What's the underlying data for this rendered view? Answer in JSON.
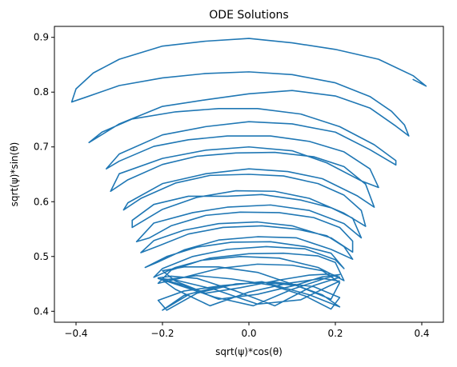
{
  "chart_data": {
    "type": "line",
    "title": "ODE Solutions",
    "xlabel": "sqrt(ψ)*cos(θ)",
    "ylabel": "sqrt(ψ)*sin(θ)",
    "xlim": [
      -0.45,
      0.45
    ],
    "ylim": [
      0.38,
      0.92
    ],
    "xticks": [
      -0.4,
      -0.2,
      0.0,
      0.2,
      0.4
    ],
    "xtick_labels": [
      "−0.4",
      "−0.2",
      "0.0",
      "0.2",
      "0.4"
    ],
    "yticks": [
      0.4,
      0.5,
      0.6,
      0.7,
      0.8,
      0.9
    ],
    "ytick_labels": [
      "0.4",
      "0.5",
      "0.6",
      "0.7",
      "0.8",
      "0.9"
    ],
    "grid": false,
    "line_color": "#1f77b4",
    "series": [
      {
        "x": [
          0.38,
          0.41,
          0.38,
          0.3,
          0.2,
          0.1,
          0.0,
          -0.1,
          -0.2,
          -0.3,
          -0.36,
          -0.4,
          -0.41,
          -0.38,
          -0.3,
          -0.2,
          -0.1,
          0.0,
          0.1,
          0.2,
          0.28,
          0.33,
          0.36,
          0.37,
          0.34,
          0.28,
          0.2,
          0.1,
          0.0,
          -0.1,
          -0.2,
          -0.3,
          -0.37,
          -0.34,
          -0.27,
          -0.17,
          -0.07,
          0.02,
          0.12,
          0.21,
          0.29,
          0.34,
          0.34,
          0.28,
          0.2,
          0.1,
          0.0,
          -0.1,
          -0.2,
          -0.3,
          -0.33,
          -0.3,
          -0.22,
          -0.14,
          -0.05,
          0.05,
          0.14,
          0.22,
          0.28,
          0.3,
          0.26,
          0.18,
          0.1,
          0.0,
          -0.1,
          -0.2,
          -0.3,
          -0.32,
          -0.28,
          -0.2,
          -0.12,
          -0.03,
          0.06,
          0.15,
          0.22,
          0.27,
          0.29,
          0.25,
          0.17,
          0.09,
          0.0,
          -0.1,
          -0.2,
          -0.28,
          -0.29,
          -0.25,
          -0.17,
          -0.09,
          0.0,
          0.08,
          0.16,
          0.22,
          0.26,
          0.27,
          0.22,
          0.14,
          0.06,
          -0.03,
          -0.12,
          -0.2,
          -0.27,
          -0.27,
          -0.22,
          -0.14,
          -0.05,
          0.03,
          0.12,
          0.19,
          0.24,
          0.26,
          0.22,
          0.14,
          0.05,
          -0.05,
          -0.13,
          -0.22,
          -0.26,
          -0.23,
          -0.18,
          -0.1,
          -0.02,
          0.07,
          0.15,
          0.21,
          0.24,
          0.24,
          0.19,
          0.1,
          0.02,
          -0.07,
          -0.15,
          -0.22,
          -0.25,
          -0.21,
          -0.14,
          -0.06,
          0.03,
          0.11,
          0.18,
          0.22,
          0.24,
          0.19,
          0.11,
          0.02,
          -0.07,
          -0.15,
          -0.21,
          -0.24,
          -0.19,
          -0.12,
          -0.04,
          0.05,
          0.13,
          0.19,
          0.22,
          0.2,
          0.13,
          0.04,
          -0.05,
          -0.13,
          -0.2,
          -0.22,
          -0.17,
          -0.09,
          0.0,
          0.08,
          0.16,
          0.2,
          0.22,
          0.16,
          0.07,
          -0.02,
          -0.11,
          -0.18,
          -0.21,
          -0.15,
          -0.07,
          0.02,
          0.1,
          0.17,
          0.21,
          0.19,
          0.11,
          0.02,
          -0.07,
          -0.15,
          -0.2,
          -0.17,
          -0.1,
          -0.02,
          0.07,
          0.14,
          0.19,
          0.21,
          0.15,
          0.06,
          -0.03,
          -0.12,
          -0.18,
          -0.21,
          -0.15,
          -0.07,
          0.02,
          0.11,
          0.17,
          0.21,
          0.18,
          0.1,
          0.01,
          -0.08,
          -0.16,
          -0.21,
          -0.17,
          -0.08,
          0.02,
          0.12,
          0.18,
          0.21,
          0.17,
          0.09,
          0.0,
          -0.09,
          -0.17,
          -0.2,
          -0.12,
          -0.04,
          0.05,
          0.13,
          0.19,
          0.21,
          0.15,
          0.06,
          -0.03,
          -0.12,
          -0.19,
          -0.21,
          -0.15,
          -0.06,
          0.03,
          0.11,
          0.17,
          0.21,
          0.14,
          0.03,
          -0.07,
          -0.15,
          -0.2,
          -0.14
        ],
        "y": [
          0.823,
          0.811,
          0.83,
          0.86,
          0.878,
          0.89,
          0.898,
          0.893,
          0.884,
          0.86,
          0.835,
          0.806,
          0.782,
          0.79,
          0.812,
          0.826,
          0.834,
          0.837,
          0.832,
          0.817,
          0.792,
          0.765,
          0.74,
          0.72,
          0.738,
          0.771,
          0.793,
          0.803,
          0.797,
          0.786,
          0.774,
          0.742,
          0.708,
          0.727,
          0.751,
          0.764,
          0.77,
          0.77,
          0.76,
          0.737,
          0.704,
          0.675,
          0.667,
          0.695,
          0.727,
          0.742,
          0.746,
          0.737,
          0.722,
          0.687,
          0.66,
          0.674,
          0.701,
          0.713,
          0.72,
          0.72,
          0.71,
          0.691,
          0.66,
          0.626,
          0.638,
          0.671,
          0.693,
          0.7,
          0.694,
          0.679,
          0.651,
          0.619,
          0.64,
          0.668,
          0.683,
          0.689,
          0.69,
          0.682,
          0.664,
          0.632,
          0.59,
          0.611,
          0.642,
          0.655,
          0.66,
          0.651,
          0.633,
          0.598,
          0.585,
          0.606,
          0.634,
          0.648,
          0.65,
          0.647,
          0.633,
          0.612,
          0.584,
          0.555,
          0.579,
          0.606,
          0.619,
          0.62,
          0.608,
          0.586,
          0.553,
          0.566,
          0.595,
          0.61,
          0.61,
          0.613,
          0.603,
          0.589,
          0.57,
          0.534,
          0.56,
          0.584,
          0.594,
          0.59,
          0.58,
          0.561,
          0.527,
          0.534,
          0.556,
          0.575,
          0.581,
          0.58,
          0.571,
          0.553,
          0.528,
          0.508,
          0.534,
          0.556,
          0.563,
          0.56,
          0.548,
          0.529,
          0.507,
          0.519,
          0.541,
          0.553,
          0.556,
          0.55,
          0.538,
          0.518,
          0.495,
          0.513,
          0.534,
          0.536,
          0.53,
          0.512,
          0.49,
          0.48,
          0.5,
          0.517,
          0.526,
          0.527,
          0.518,
          0.506,
          0.478,
          0.494,
          0.514,
          0.518,
          0.513,
          0.5,
          0.478,
          0.462,
          0.48,
          0.497,
          0.505,
          0.506,
          0.501,
          0.489,
          0.456,
          0.48,
          0.497,
          0.5,
          0.493,
          0.475,
          0.451,
          0.462,
          0.478,
          0.486,
          0.484,
          0.474,
          0.452,
          0.422,
          0.447,
          0.471,
          0.481,
          0.481,
          0.474,
          0.455,
          0.433,
          0.443,
          0.457,
          0.466,
          0.468,
          0.462,
          0.447,
          0.41,
          0.437,
          0.46,
          0.464,
          0.461,
          0.447,
          0.422,
          0.431,
          0.448,
          0.463,
          0.467,
          0.461,
          0.44,
          0.41,
          0.426,
          0.447,
          0.46,
          0.457,
          0.44,
          0.413,
          0.421,
          0.444,
          0.455,
          0.46,
          0.451,
          0.435,
          0.41,
          0.44,
          0.457,
          0.465,
          0.459,
          0.448,
          0.428,
          0.404,
          0.425,
          0.445,
          0.453,
          0.45,
          0.433,
          0.402,
          0.42,
          0.437,
          0.447,
          0.453,
          0.447,
          0.43,
          0.408,
          0.43,
          0.454,
          0.445,
          0.429,
          0.402,
          0.43
        ]
      }
    ]
  }
}
